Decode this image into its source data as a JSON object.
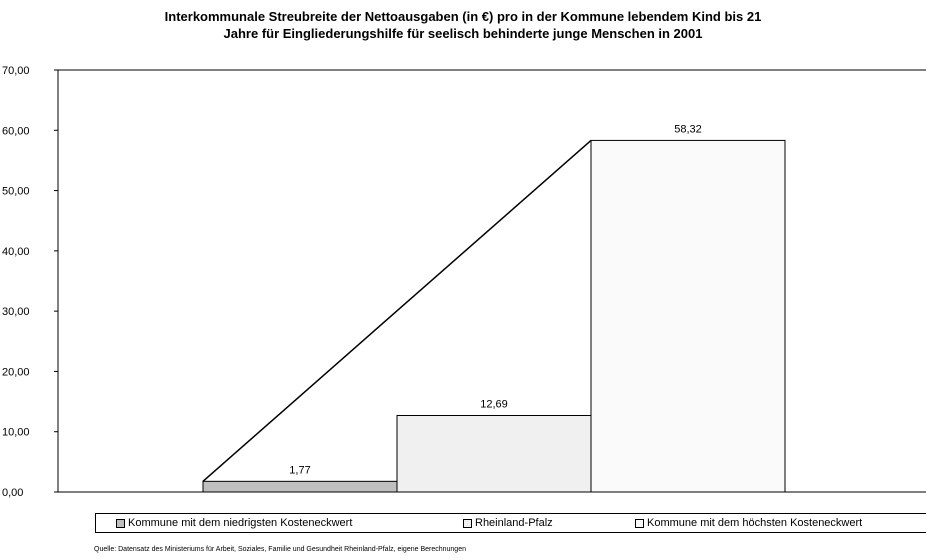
{
  "title_line1": "Interkommunale Streubreite der Nettoausgaben (in €) pro in der Kommune lebendem Kind bis 21",
  "title_line2": "Jahre für Eingliederungshilfe für seelisch behinderte junge Menschen in 2001",
  "source": "Quelle: Datensatz des Ministeriums für Arbeit, Soziales, Familie und Gesundheit Rheinland-Pfalz, eigene Berechnungen",
  "chart_data": {
    "type": "bar",
    "title": "Interkommunale Streubreite der Nettoausgaben (in €) pro in der Kommune lebendem Kind bis 21 Jahre für Eingliederungshilfe für seelisch behinderte junge Menschen in 2001",
    "xlabel": "",
    "ylabel": "",
    "ylim": [
      0,
      70
    ],
    "yticks": [
      "0,00",
      "10,00",
      "20,00",
      "30,00",
      "40,00",
      "50,00",
      "60,00",
      "70,00"
    ],
    "grid": false,
    "legend_position": "bottom",
    "series": [
      {
        "name": "Kommune mit dem niedrigsten Kosteneckwert",
        "value": 1.77,
        "label": "1,77",
        "color": "#bfbfbf"
      },
      {
        "name": "Rheinland-Pfalz",
        "value": 12.69,
        "label": "12,69",
        "color": "#f0f0f0"
      },
      {
        "name": "Kommune mit dem höchsten Kosteneckwert",
        "value": 58.32,
        "label": "58,32",
        "color": "#fafafa"
      }
    ],
    "connector_line": {
      "from_series": 0,
      "to_series": 2
    }
  }
}
